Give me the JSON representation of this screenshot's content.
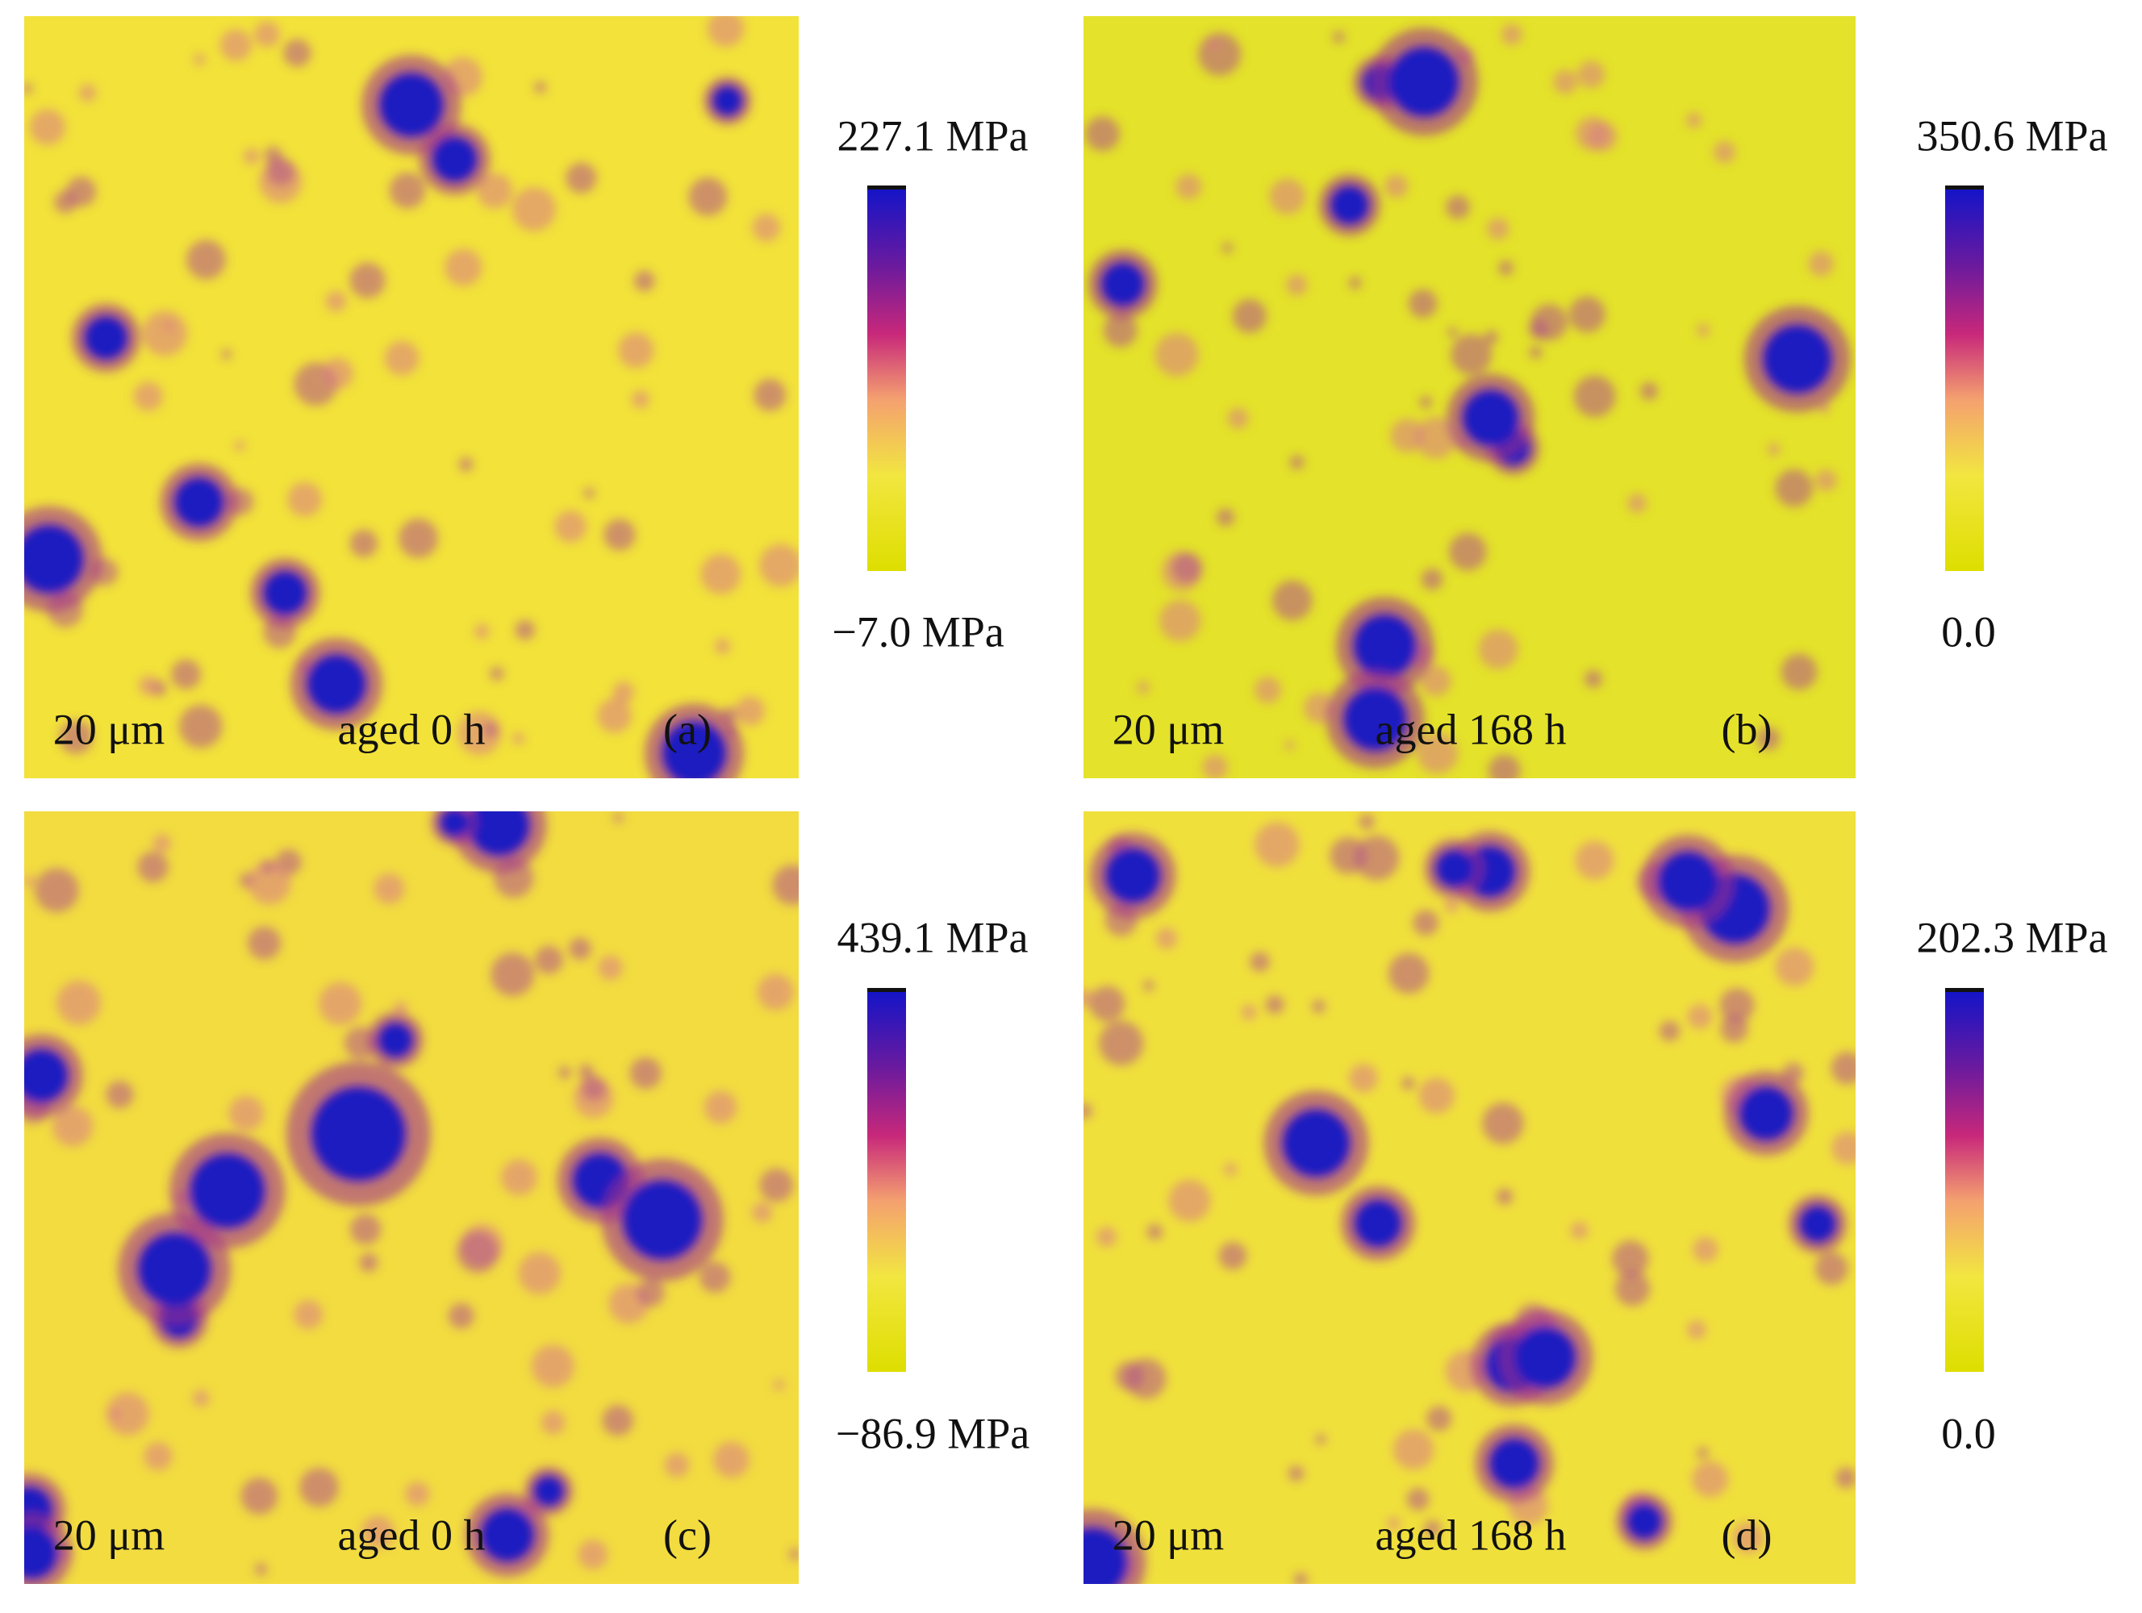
{
  "panels": [
    {
      "scale": "20 μm",
      "caption": "aged 0 h",
      "label": "(a)",
      "colorbar": {
        "max": "227.1 MPa",
        "min": "−7.0 MPa"
      }
    },
    {
      "scale": "20 μm",
      "caption": "aged 168 h",
      "label": "(b)",
      "colorbar": {
        "max": "350.6 MPa",
        "min": "0.0"
      }
    },
    {
      "scale": "20 μm",
      "caption": "aged 0 h",
      "label": "(c)",
      "colorbar": {
        "max": "439.1 MPa",
        "min": "−86.9 MPa"
      }
    },
    {
      "scale": "20 μm",
      "caption": "aged 168 h",
      "label": "(d)",
      "colorbar": {
        "max": "202.3 MPa",
        "min": "0.0"
      }
    }
  ]
}
